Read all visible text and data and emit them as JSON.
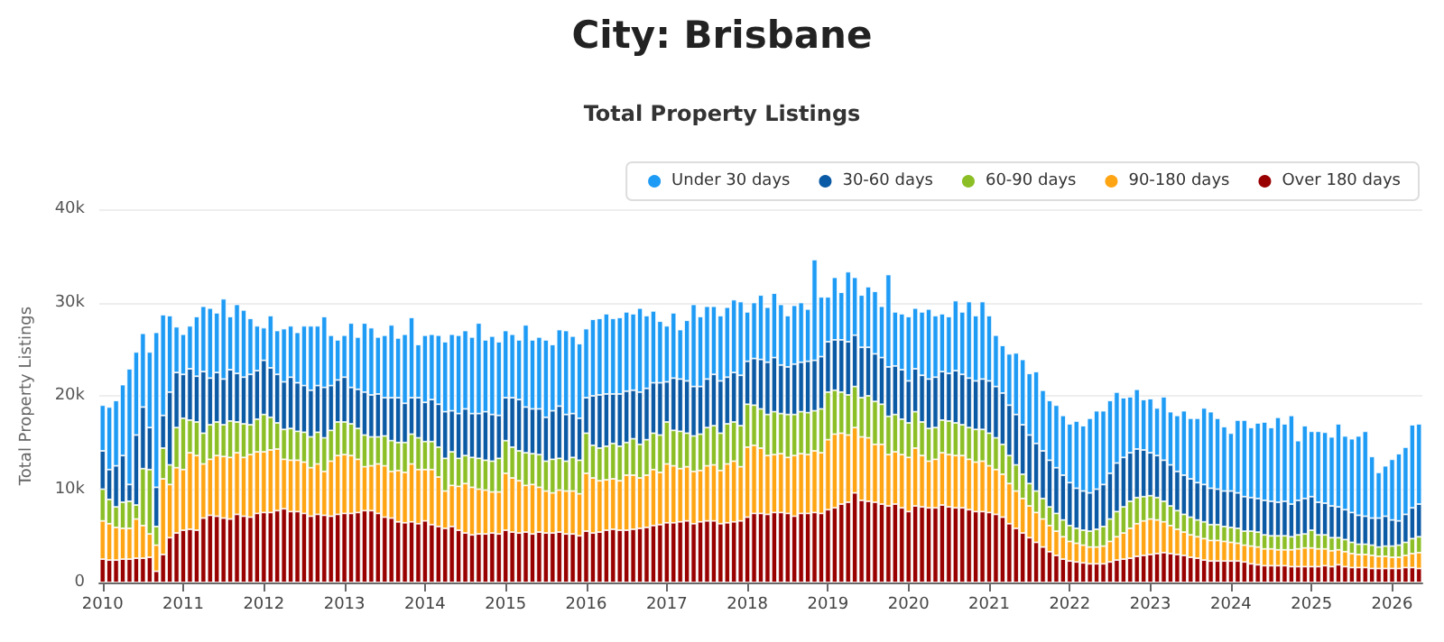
{
  "chart_data": {
    "type": "bar",
    "stacked": true,
    "title": "City: Brisbane",
    "subtitle": "Total Property Listings",
    "ylabel": "Total Property Listings",
    "categories": [
      "2010",
      null,
      null,
      null,
      null,
      null,
      null,
      null,
      null,
      null,
      null,
      null,
      "2011",
      null,
      null,
      null,
      null,
      null,
      null,
      null,
      null,
      null,
      null,
      null,
      "2012",
      null,
      null,
      null,
      null,
      null,
      null,
      null,
      null,
      null,
      null,
      null,
      "2013",
      null,
      null,
      null,
      null,
      null,
      null,
      null,
      null,
      null,
      null,
      null,
      "2014",
      null,
      null,
      null,
      null,
      null,
      null,
      null,
      null,
      null,
      null,
      null,
      "2015",
      null,
      null,
      null,
      null,
      null,
      null,
      null,
      null,
      null,
      null,
      null,
      "2016",
      null,
      null,
      null,
      null,
      null,
      null,
      null,
      null,
      null,
      null,
      null,
      "2017",
      null,
      null,
      null,
      null,
      null,
      null,
      null,
      null,
      null,
      null,
      null,
      "2018",
      null,
      null,
      null,
      null,
      null,
      null,
      null,
      null,
      null,
      null,
      null,
      "2019",
      null,
      null,
      null,
      null,
      null,
      null,
      null,
      null,
      null,
      null,
      null,
      "2020",
      null,
      null,
      null,
      null,
      null,
      null,
      null,
      null,
      null,
      null,
      null,
      "2021",
      null,
      null,
      null,
      null,
      null,
      null,
      null,
      null,
      null,
      null,
      null,
      "2022",
      null,
      null,
      null,
      null,
      null,
      null,
      null,
      null,
      null,
      null,
      null,
      "2023",
      null,
      null,
      null,
      null,
      null,
      null,
      null,
      null,
      null,
      null,
      null,
      "2024",
      null,
      null,
      null,
      null,
      null,
      null,
      null,
      null,
      null,
      null,
      null,
      "2025",
      null,
      null,
      null,
      null,
      null,
      null,
      null,
      null,
      null,
      null,
      null,
      "2026",
      null,
      null,
      null,
      null
    ],
    "series": [
      {
        "name": "Over 180 days",
        "color": "#990000",
        "values": [
          2.5,
          2.4,
          2.4,
          2.5,
          2.5,
          2.6,
          2.6,
          2.7,
          1.2,
          3.0,
          4.8,
          5.3,
          5.6,
          5.7,
          5.6,
          6.9,
          7.2,
          7.1,
          6.9,
          6.8,
          7.3,
          7.1,
          7.0,
          7.4,
          7.5,
          7.5,
          7.7,
          7.9,
          7.6,
          7.6,
          7.4,
          7.1,
          7.3,
          7.2,
          7.1,
          7.3,
          7.4,
          7.4,
          7.5,
          7.7,
          7.7,
          7.4,
          7.0,
          6.9,
          6.5,
          6.4,
          6.5,
          6.3,
          6.6,
          6.2,
          6.0,
          5.8,
          6.0,
          5.6,
          5.3,
          5.1,
          5.2,
          5.2,
          5.3,
          5.2,
          5.6,
          5.4,
          5.3,
          5.4,
          5.2,
          5.4,
          5.3,
          5.3,
          5.4,
          5.2,
          5.2,
          5.0,
          5.5,
          5.3,
          5.4,
          5.6,
          5.7,
          5.6,
          5.6,
          5.7,
          5.8,
          5.9,
          6.1,
          6.2,
          6.4,
          6.4,
          6.5,
          6.6,
          6.3,
          6.5,
          6.6,
          6.6,
          6.3,
          6.4,
          6.5,
          6.6,
          7.0,
          7.4,
          7.4,
          7.3,
          7.5,
          7.5,
          7.4,
          7.1,
          7.4,
          7.4,
          7.5,
          7.4,
          7.8,
          8.0,
          8.4,
          8.6,
          9.6,
          8.8,
          8.7,
          8.6,
          8.4,
          8.2,
          8.4,
          8.0,
          7.6,
          8.2,
          8.1,
          8.0,
          8.0,
          8.3,
          8.1,
          8.0,
          8.0,
          7.8,
          7.6,
          7.6,
          7.5,
          7.3,
          7.0,
          6.3,
          5.8,
          5.3,
          4.8,
          4.3,
          3.8,
          3.3,
          2.9,
          2.5,
          2.3,
          2.2,
          2.1,
          2.0,
          2.0,
          2.0,
          2.2,
          2.4,
          2.5,
          2.6,
          2.8,
          2.9,
          3.0,
          3.1,
          3.2,
          3.1,
          3.0,
          2.9,
          2.7,
          2.6,
          2.4,
          2.3,
          2.3,
          2.3,
          2.3,
          2.3,
          2.2,
          2.0,
          1.9,
          1.8,
          1.8,
          1.8,
          1.8,
          1.7,
          1.7,
          1.7,
          1.7,
          1.7,
          1.8,
          1.7,
          1.9,
          1.7,
          1.6,
          1.6,
          1.6,
          1.5,
          1.5,
          1.5,
          1.5,
          1.5,
          1.6,
          1.6,
          1.5
        ]
      },
      {
        "name": "90-180 days",
        "color": "#ffa514",
        "values": [
          4.1,
          3.9,
          3.5,
          3.3,
          3.3,
          4.2,
          3.5,
          2.5,
          2.8,
          8.1,
          5.7,
          7.0,
          6.5,
          8.2,
          8.0,
          5.8,
          6.0,
          6.5,
          6.6,
          6.6,
          6.6,
          6.3,
          6.7,
          6.6,
          6.5,
          6.7,
          6.6,
          5.3,
          5.5,
          5.5,
          5.5,
          5.2,
          5.4,
          4.7,
          5.9,
          6.3,
          6.3,
          6.2,
          5.7,
          4.7,
          4.8,
          5.3,
          5.5,
          5.0,
          5.5,
          5.4,
          6.2,
          5.8,
          5.5,
          5.9,
          5.3,
          4.0,
          4.4,
          4.7,
          5.3,
          5.1,
          4.8,
          4.7,
          4.4,
          4.5,
          6.1,
          5.8,
          5.6,
          5.0,
          5.3,
          4.8,
          4.5,
          4.3,
          4.5,
          4.6,
          4.6,
          4.5,
          6.2,
          5.9,
          5.5,
          5.4,
          5.4,
          5.3,
          5.9,
          5.8,
          5.4,
          5.6,
          6.0,
          5.6,
          6.3,
          6.1,
          5.7,
          5.8,
          5.6,
          5.5,
          5.9,
          6.0,
          5.7,
          6.3,
          6.5,
          5.8,
          7.5,
          7.3,
          7.0,
          6.3,
          6.2,
          6.3,
          6.0,
          6.5,
          6.4,
          6.3,
          6.6,
          6.5,
          7.5,
          7.9,
          7.6,
          7.2,
          7.0,
          6.8,
          6.8,
          6.2,
          6.4,
          5.5,
          5.6,
          5.7,
          5.8,
          6.2,
          5.5,
          5.0,
          5.2,
          5.6,
          5.6,
          5.6,
          5.6,
          5.4,
          5.3,
          5.4,
          5.0,
          4.8,
          4.6,
          4.3,
          4.0,
          3.7,
          3.4,
          3.2,
          3.0,
          2.8,
          2.6,
          2.4,
          2.1,
          2.0,
          1.9,
          1.8,
          1.8,
          1.9,
          2.2,
          2.5,
          2.8,
          3.2,
          3.5,
          3.7,
          3.8,
          3.6,
          3.3,
          3.0,
          2.7,
          2.5,
          2.4,
          2.3,
          2.3,
          2.2,
          2.2,
          2.1,
          2.0,
          1.9,
          1.8,
          1.9,
          1.9,
          1.8,
          1.8,
          1.7,
          1.7,
          1.8,
          1.9,
          2.0,
          2.0,
          1.9,
          1.8,
          1.7,
          1.6,
          1.6,
          1.5,
          1.4,
          1.4,
          1.4,
          1.3,
          1.3,
          1.2,
          1.2,
          1.3,
          1.5,
          1.7
        ]
      },
      {
        "name": "60-90 days",
        "color": "#8cbf26",
        "values": [
          3.4,
          2.6,
          2.2,
          2.8,
          2.9,
          1.5,
          6.1,
          6.9,
          2.0,
          3.3,
          2.1,
          4.3,
          5.5,
          3.5,
          3.6,
          3.3,
          3.7,
          3.6,
          3.4,
          3.9,
          3.3,
          3.6,
          3.2,
          3.5,
          4.0,
          3.5,
          2.8,
          3.2,
          3.4,
          3.1,
          3.2,
          3.3,
          3.4,
          3.6,
          3.3,
          3.6,
          3.5,
          3.4,
          3.3,
          3.4,
          3.1,
          2.9,
          3.2,
          3.3,
          3.0,
          3.2,
          3.2,
          3.4,
          3.0,
          3.0,
          3.2,
          3.5,
          3.6,
          3.0,
          3.0,
          3.2,
          3.3,
          3.2,
          3.3,
          3.6,
          3.5,
          3.3,
          3.2,
          3.5,
          3.3,
          3.5,
          3.2,
          3.6,
          3.4,
          3.2,
          3.6,
          3.6,
          4.3,
          3.5,
          3.5,
          3.6,
          3.8,
          3.7,
          3.5,
          3.9,
          3.6,
          3.8,
          3.9,
          4.0,
          4.5,
          3.8,
          4.0,
          3.6,
          3.8,
          3.9,
          4.1,
          4.2,
          4.0,
          4.3,
          4.2,
          4.4,
          4.6,
          4.3,
          4.2,
          4.4,
          4.6,
          4.3,
          4.6,
          4.4,
          4.5,
          4.5,
          4.3,
          4.7,
          5.1,
          4.7,
          4.4,
          4.3,
          4.4,
          4.2,
          4.5,
          4.6,
          4.3,
          4.1,
          4.0,
          3.8,
          3.7,
          3.9,
          3.6,
          3.5,
          3.4,
          3.5,
          3.6,
          3.5,
          3.3,
          3.4,
          3.5,
          3.4,
          3.5,
          3.4,
          3.2,
          3.0,
          2.8,
          2.6,
          2.4,
          2.3,
          2.2,
          2.0,
          1.9,
          1.8,
          1.7,
          1.6,
          1.6,
          1.7,
          1.9,
          2.1,
          2.4,
          2.7,
          2.8,
          2.9,
          2.8,
          2.6,
          2.5,
          2.4,
          2.2,
          2.1,
          2.0,
          1.9,
          1.9,
          1.8,
          1.8,
          1.7,
          1.7,
          1.6,
          1.6,
          1.6,
          1.5,
          1.6,
          1.6,
          1.5,
          1.4,
          1.5,
          1.5,
          1.4,
          1.5,
          1.5,
          1.9,
          1.5,
          1.5,
          1.4,
          1.3,
          1.3,
          1.2,
          1.1,
          1.1,
          1.1,
          1.0,
          1.1,
          1.2,
          1.3,
          1.4,
          1.6,
          1.7
        ]
      },
      {
        "name": "30-60 days",
        "color": "#0b5aa5",
        "values": [
          4.1,
          3.2,
          4.4,
          5.0,
          1.8,
          7.5,
          6.6,
          4.5,
          4.2,
          3.5,
          7.8,
          5.9,
          4.7,
          5.5,
          4.9,
          6.6,
          5.0,
          5.3,
          4.9,
          5.5,
          5.2,
          5.0,
          5.4,
          5.2,
          5.8,
          5.3,
          5.2,
          5.1,
          5.5,
          5.2,
          5.0,
          5.0,
          5.0,
          5.4,
          4.8,
          4.5,
          4.8,
          3.9,
          4.2,
          4.6,
          4.5,
          4.6,
          4.1,
          4.6,
          4.8,
          4.2,
          3.9,
          4.3,
          4.2,
          4.5,
          4.6,
          5.0,
          4.4,
          4.8,
          5.0,
          4.7,
          4.8,
          5.2,
          5.0,
          4.6,
          4.6,
          5.3,
          5.5,
          4.9,
          4.8,
          4.9,
          4.7,
          5.2,
          5.6,
          5.0,
          4.7,
          4.5,
          3.8,
          5.3,
          5.7,
          5.6,
          5.3,
          5.6,
          5.5,
          5.2,
          5.6,
          5.5,
          5.4,
          5.6,
          4.3,
          5.6,
          5.6,
          5.6,
          5.3,
          5.1,
          5.2,
          5.5,
          5.6,
          5.0,
          5.3,
          5.4,
          4.6,
          5.0,
          5.3,
          5.6,
          5.8,
          5.2,
          5.1,
          5.4,
          5.3,
          5.5,
          5.4,
          5.6,
          5.4,
          5.4,
          5.6,
          5.7,
          5.5,
          5.4,
          5.2,
          5.1,
          5.0,
          5.3,
          5.2,
          5.3,
          4.5,
          4.6,
          5.0,
          5.3,
          5.4,
          5.2,
          5.1,
          5.6,
          5.4,
          5.3,
          5.2,
          5.4,
          5.6,
          5.5,
          5.5,
          5.4,
          5.4,
          5.3,
          5.2,
          5.1,
          5.1,
          5.0,
          4.9,
          4.8,
          4.6,
          4.3,
          4.2,
          4.1,
          4.3,
          4.5,
          4.9,
          5.2,
          5.3,
          5.2,
          5.2,
          5.0,
          4.6,
          4.5,
          4.4,
          4.4,
          4.2,
          4.2,
          4.1,
          4.0,
          4.0,
          3.9,
          3.8,
          3.8,
          3.9,
          3.8,
          3.7,
          3.6,
          3.6,
          3.7,
          3.7,
          3.6,
          3.7,
          3.5,
          3.7,
          3.8,
          3.6,
          3.5,
          3.4,
          3.4,
          3.3,
          3.2,
          3.2,
          3.1,
          3.0,
          2.9,
          3.1,
          3.2,
          2.8,
          2.6,
          3.0,
          3.3,
          3.5
        ]
      },
      {
        "name": "Under 30 days",
        "color": "#1e9bf5",
        "values": [
          4.9,
          6.7,
          7.0,
          7.6,
          12.4,
          8.9,
          7.9,
          8.1,
          16.6,
          10.8,
          8.2,
          4.9,
          4.3,
          4.6,
          6.4,
          7.0,
          7.5,
          6.4,
          8.6,
          5.7,
          7.4,
          7.2,
          6.0,
          4.8,
          3.5,
          5.6,
          4.7,
          5.7,
          5.5,
          5.4,
          6.4,
          6.9,
          6.4,
          7.6,
          5.4,
          4.3,
          4.5,
          6.9,
          5.6,
          7.4,
          7.2,
          6.1,
          6.7,
          7.8,
          6.4,
          7.4,
          8.6,
          5.7,
          7.2,
          7.0,
          7.4,
          7.5,
          8.2,
          8.4,
          8.4,
          8.2,
          9.7,
          7.7,
          8.4,
          7.9,
          7.2,
          6.8,
          6.4,
          8.8,
          7.4,
          7.7,
          8.3,
          7.1,
          8.2,
          9.0,
          8.3,
          8.0,
          7.4,
          8.2,
          8.2,
          8.6,
          8.1,
          8.2,
          8.5,
          8.2,
          9.0,
          7.8,
          7.7,
          6.6,
          6.0,
          7.0,
          5.3,
          6.5,
          8.8,
          7.5,
          7.8,
          7.3,
          7.0,
          7.5,
          7.8,
          7.9,
          5.3,
          6.0,
          6.9,
          5.9,
          6.9,
          6.5,
          5.5,
          6.3,
          6.4,
          5.6,
          10.8,
          6.4,
          4.8,
          6.7,
          5.1,
          7.5,
          6.2,
          5.6,
          6.5,
          6.7,
          5.5,
          9.9,
          5.8,
          6.0,
          6.9,
          6.5,
          6.8,
          7.5,
          6.6,
          6.2,
          6.1,
          7.5,
          6.7,
          8.2,
          7.0,
          8.3,
          7.0,
          5.5,
          5.1,
          5.5,
          6.6,
          7.0,
          6.6,
          7.7,
          6.5,
          6.4,
          6.7,
          6.4,
          6.3,
          7.2,
          7.0,
          8.0,
          8.4,
          7.9,
          7.8,
          7.6,
          6.4,
          6.0,
          6.4,
          5.4,
          5.8,
          5.1,
          6.8,
          5.7,
          6.0,
          6.9,
          6.5,
          6.9,
          8.2,
          8.2,
          7.6,
          6.9,
          6.2,
          7.8,
          8.2,
          7.5,
          8.1,
          8.4,
          7.9,
          9.1,
          8.3,
          9.5,
          6.4,
          7.8,
          7.0,
          7.6,
          7.6,
          7.4,
          8.9,
          7.9,
          7.9,
          8.5,
          9.1,
          6.6,
          4.9,
          5.4,
          6.5,
          7.2,
          7.2,
          8.9,
          8.6
        ]
      }
    ],
    "ylim": [
      0,
      40
    ],
    "yticks": [
      0,
      {
        "value": 10,
        "label": "10k"
      },
      {
        "value": 20,
        "label": "20k"
      },
      {
        "value": 30,
        "label": "30k"
      },
      {
        "value": 40,
        "label": "40k"
      }
    ],
    "grid": "y",
    "legend": "top right"
  }
}
